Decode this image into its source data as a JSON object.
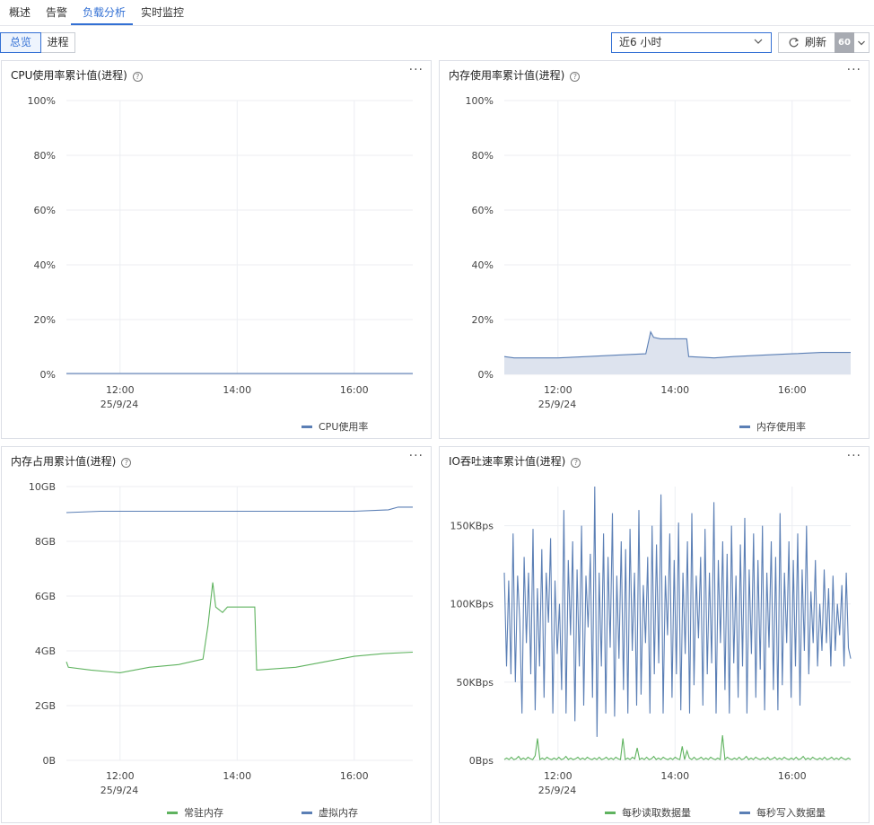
{
  "tabs": [
    "概述",
    "告警",
    "负载分析",
    "实时监控"
  ],
  "active_tab": "负载分析",
  "view_toggle": {
    "overview": "总览",
    "process": "进程",
    "active": "总览"
  },
  "time_range": {
    "value": "近6 小时"
  },
  "refresh": {
    "label": "刷新",
    "interval": "60"
  },
  "colors": {
    "accent": "#3370d4",
    "series_blue": "#5b7fb5",
    "series_green": "#5fb35f",
    "area_fill": "#dde3ee"
  },
  "panels": {
    "cpu": {
      "title": "CPU使用率累计值(进程)"
    },
    "mem_rate": {
      "title": "内存使用率累计值(进程)"
    },
    "mem_usage": {
      "title": "内存占用累计值(进程)"
    },
    "io": {
      "title": "IO吞吐速率累计值(进程)"
    }
  },
  "chart_data": [
    {
      "type": "line",
      "title": "CPU使用率累计值(进程)",
      "x_ticks": [
        "12:00",
        "14:00",
        "16:00"
      ],
      "x_date": "25/9/24",
      "y_ticks": [
        "0%",
        "20%",
        "40%",
        "60%",
        "80%",
        "100%"
      ],
      "ylim": [
        0,
        100
      ],
      "grid": true,
      "legend_position": "bottom-right",
      "series": [
        {
          "name": "CPU使用率",
          "color": "#5b7fb5",
          "x": [
            "11:05",
            "12:00",
            "13:00",
            "14:00",
            "15:00",
            "16:00",
            "17:00"
          ],
          "values": [
            0.3,
            0.3,
            0.3,
            0.3,
            0.3,
            0.3,
            0.3
          ]
        }
      ]
    },
    {
      "type": "area",
      "title": "内存使用率累计值(进程)",
      "x_ticks": [
        "12:00",
        "14:00",
        "16:00"
      ],
      "x_date": "25/9/24",
      "y_ticks": [
        "0%",
        "20%",
        "40%",
        "60%",
        "80%",
        "100%"
      ],
      "ylim": [
        0,
        100
      ],
      "grid": true,
      "legend_position": "bottom-right",
      "series": [
        {
          "name": "内存使用率",
          "color": "#5b7fb5",
          "x": [
            "11:05",
            "11:15",
            "12:00",
            "12:30",
            "13:00",
            "13:30",
            "13:35",
            "13:38",
            "13:45",
            "14:00",
            "14:12",
            "14:14",
            "14:40",
            "15:00",
            "15:30",
            "16:00",
            "16:30",
            "17:00"
          ],
          "values": [
            6.5,
            6.0,
            6.0,
            6.5,
            7.0,
            7.5,
            15.5,
            13.5,
            13.0,
            13.0,
            13.0,
            6.5,
            6.0,
            6.5,
            7.0,
            7.5,
            8.0,
            8.0
          ]
        }
      ]
    },
    {
      "type": "line",
      "title": "内存占用累计值(进程)",
      "x_ticks": [
        "12:00",
        "14:00",
        "16:00"
      ],
      "x_date": "25/9/24",
      "y_ticks": [
        "0B",
        "2GB",
        "4GB",
        "6GB",
        "8GB",
        "10GB"
      ],
      "ylim": [
        0,
        10
      ],
      "y_unit": "GB",
      "grid": true,
      "legend_position": "bottom",
      "series": [
        {
          "name": "常驻内存",
          "color": "#5fb35f",
          "x": [
            "11:05",
            "11:07",
            "11:30",
            "12:00",
            "12:30",
            "13:00",
            "13:25",
            "13:30",
            "13:35",
            "13:38",
            "13:45",
            "13:50",
            "14:00",
            "14:18",
            "14:20",
            "15:00",
            "15:30",
            "16:00",
            "16:30",
            "17:00"
          ],
          "values": [
            3.6,
            3.4,
            3.3,
            3.2,
            3.4,
            3.5,
            3.7,
            4.9,
            6.5,
            5.6,
            5.4,
            5.6,
            5.6,
            5.6,
            3.3,
            3.4,
            3.6,
            3.8,
            3.9,
            3.95
          ]
        },
        {
          "name": "虚拟内存",
          "color": "#5b7fb5",
          "x": [
            "11:05",
            "11:40",
            "12:00",
            "13:00",
            "14:00",
            "15:00",
            "15:45",
            "16:00",
            "16:35",
            "16:45",
            "17:00"
          ],
          "values": [
            9.05,
            9.1,
            9.1,
            9.1,
            9.1,
            9.1,
            9.1,
            9.1,
            9.15,
            9.25,
            9.25
          ]
        }
      ]
    },
    {
      "type": "line",
      "title": "IO吞吐速率累计值(进程)",
      "x_ticks": [
        "12:00",
        "14:00",
        "16:00"
      ],
      "x_date": "25/9/24",
      "y_ticks": [
        "0Bps",
        "50KBps",
        "100KBps",
        "150KBps"
      ],
      "ylim": [
        0,
        175
      ],
      "y_unit": "KBps",
      "grid": true,
      "legend_position": "bottom",
      "series": [
        {
          "name": "每秒读取数据量",
          "color": "#5fb35f",
          "x_range": [
            "11:05",
            "17:00"
          ],
          "values": [
            0.5,
            1.5,
            0.5,
            2,
            0.5,
            1,
            2.5,
            0.5,
            1.5,
            0.5,
            2,
            1,
            0.5,
            3,
            14,
            0.5,
            1.5,
            0.5,
            2,
            1,
            0.5,
            1.5,
            0.5,
            2,
            0.5,
            1,
            2.5,
            0.5,
            1.5,
            0.5,
            1,
            2,
            0.5,
            1.5,
            0.5,
            2,
            1,
            0.5,
            1.5,
            0.5,
            2,
            0.5,
            1,
            2,
            0.5,
            1.5,
            0.5,
            2,
            1,
            0.5,
            14,
            0.5,
            1.5,
            0.5,
            2,
            1,
            8,
            0.5,
            1.5,
            0.5,
            2,
            0.5,
            1,
            2.5,
            0.5,
            1.5,
            0.5,
            2,
            1,
            0.5,
            1.5,
            0.5,
            2,
            1,
            0.5,
            9,
            0.5,
            6,
            1.5,
            0.5,
            2,
            0.5,
            1,
            2,
            0.5,
            1.5,
            0.5,
            2,
            1,
            0.5,
            1.5,
            0.5,
            16,
            0.5,
            2,
            1,
            0.5,
            1.5,
            0.5,
            2,
            0.5,
            1,
            2.5,
            0.5,
            1.5,
            0.5,
            2,
            1,
            0.5,
            1.5,
            0.5,
            2,
            0.5,
            1,
            2,
            0.5,
            1.5,
            0.5,
            2,
            1,
            0.5,
            1.5,
            0.5,
            2,
            0.5,
            1,
            2.5,
            0.5,
            1.5,
            0.5,
            2,
            1,
            0.5,
            1.5,
            0.5,
            2,
            0.5,
            1,
            2,
            0.5,
            1.5,
            0.5,
            2,
            1,
            0.5,
            1.5,
            0.5
          ]
        },
        {
          "name": "每秒写入数据量",
          "color": "#5b7fb5",
          "x_range": [
            "11:05",
            "17:00"
          ],
          "values": [
            120,
            60,
            115,
            55,
            145,
            50,
            118,
            90,
            30,
            130,
            75,
            120,
            55,
            148,
            32,
            110,
            60,
            135,
            40,
            120,
            88,
            142,
            30,
            115,
            68,
            100,
            45,
            160,
            30,
            128,
            80,
            140,
            25,
            122,
            60,
            150,
            35,
            118,
            85,
            132,
            40,
            175,
            15,
            120,
            60,
            145,
            30,
            130,
            72,
            158,
            28,
            118,
            65,
            140,
            45,
            135,
            30,
            148,
            70,
            120,
            35,
            160,
            42,
            112,
            75,
            130,
            30,
            150,
            55,
            138,
            62,
            170,
            30,
            118,
            80,
            145,
            40,
            128,
            55,
            152,
            32,
            120,
            68,
            140,
            30,
            158,
            48,
            118,
            78,
            130,
            35,
            148,
            55,
            120,
            62,
            165,
            30,
            128,
            75,
            140,
            45,
            132,
            30,
            150,
            62,
            118,
            40,
            138,
            60,
            155,
            30,
            122,
            68,
            145,
            40,
            128,
            58,
            150,
            32,
            120,
            72,
            140,
            45,
            130,
            32,
            158,
            48,
            120,
            75,
            140,
            40,
            128,
            60,
            145,
            35,
            122,
            70,
            150,
            55,
            108,
            75,
            128,
            60,
            100,
            70,
            122,
            75,
            110,
            60,
            118,
            70,
            100,
            80,
            112,
            60,
            120,
            72,
            65
          ]
        }
      ]
    }
  ]
}
